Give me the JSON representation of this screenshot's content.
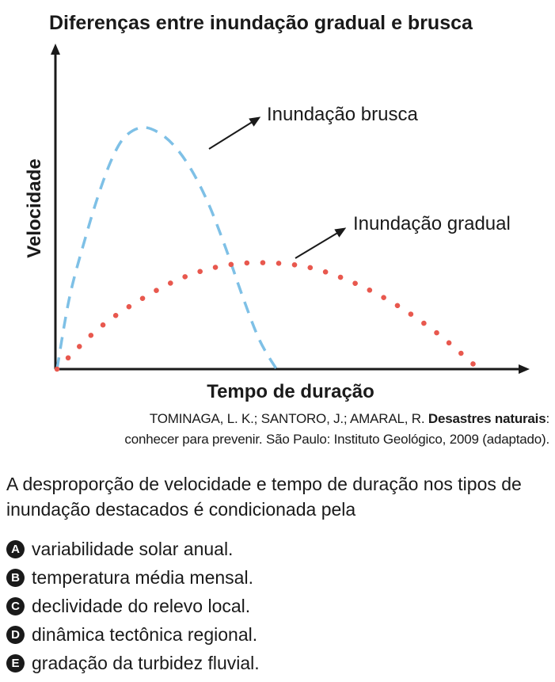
{
  "chart_data": {
    "type": "line",
    "title": "Diferenças entre inundação gradual e brusca",
    "xlabel": "Tempo de duração",
    "ylabel": "Velocidade",
    "grid": false,
    "legend": "none",
    "series": [
      {
        "name": "Inundação brusca",
        "style": "dashed",
        "color": "#7ec0e6",
        "x": [
          0,
          0.3,
          0.7,
          1.0,
          1.3,
          1.6,
          2.0,
          2.4,
          2.8,
          3.2,
          3.6,
          4.0,
          4.4,
          4.8,
          5.2
        ],
        "y": [
          0,
          3.0,
          5.6,
          7.3,
          8.7,
          9.6,
          10.0,
          9.8,
          9.2,
          8.2,
          6.8,
          5.0,
          3.0,
          1.2,
          0
        ]
      },
      {
        "name": "Inundação gradual",
        "style": "dotted",
        "color": "#e8584e",
        "x": [
          0,
          1.0,
          2.0,
          3.0,
          4.0,
          5.0,
          6.0,
          7.0,
          8.0,
          9.0,
          10.0
        ],
        "y": [
          0,
          1.7,
          2.9,
          3.8,
          4.3,
          4.4,
          4.2,
          3.6,
          2.7,
          1.5,
          0
        ]
      }
    ],
    "annotations": [
      {
        "text": "Inundação brusca",
        "series": 0
      },
      {
        "text": "Inundação gradual",
        "series": 1
      }
    ]
  },
  "source": {
    "line1_prefix": "TOMINAGA, L. K.; SANTORO, J.; AMARAL, R. ",
    "line1_title": "Desastres naturais",
    "line1_suffix": ":",
    "line2": "conhecer para prevenir. São Paulo: Instituto Geológico, 2009 (adaptado)."
  },
  "question": {
    "text": "A desproporção de velocidade e tempo de duração nos tipos de inundação destacados é condicionada pela"
  },
  "options": [
    {
      "letter": "A",
      "text": "variabilidade solar anual."
    },
    {
      "letter": "B",
      "text": "temperatura média mensal."
    },
    {
      "letter": "C",
      "text": "declividade do relevo local."
    },
    {
      "letter": "D",
      "text": "dinâmica tectônica regional."
    },
    {
      "letter": "E",
      "text": "gradação da turbidez fluvial."
    }
  ],
  "colors": {
    "text": "#1a1a1a",
    "brusca": "#7ec0e6",
    "gradual": "#e8584e"
  }
}
